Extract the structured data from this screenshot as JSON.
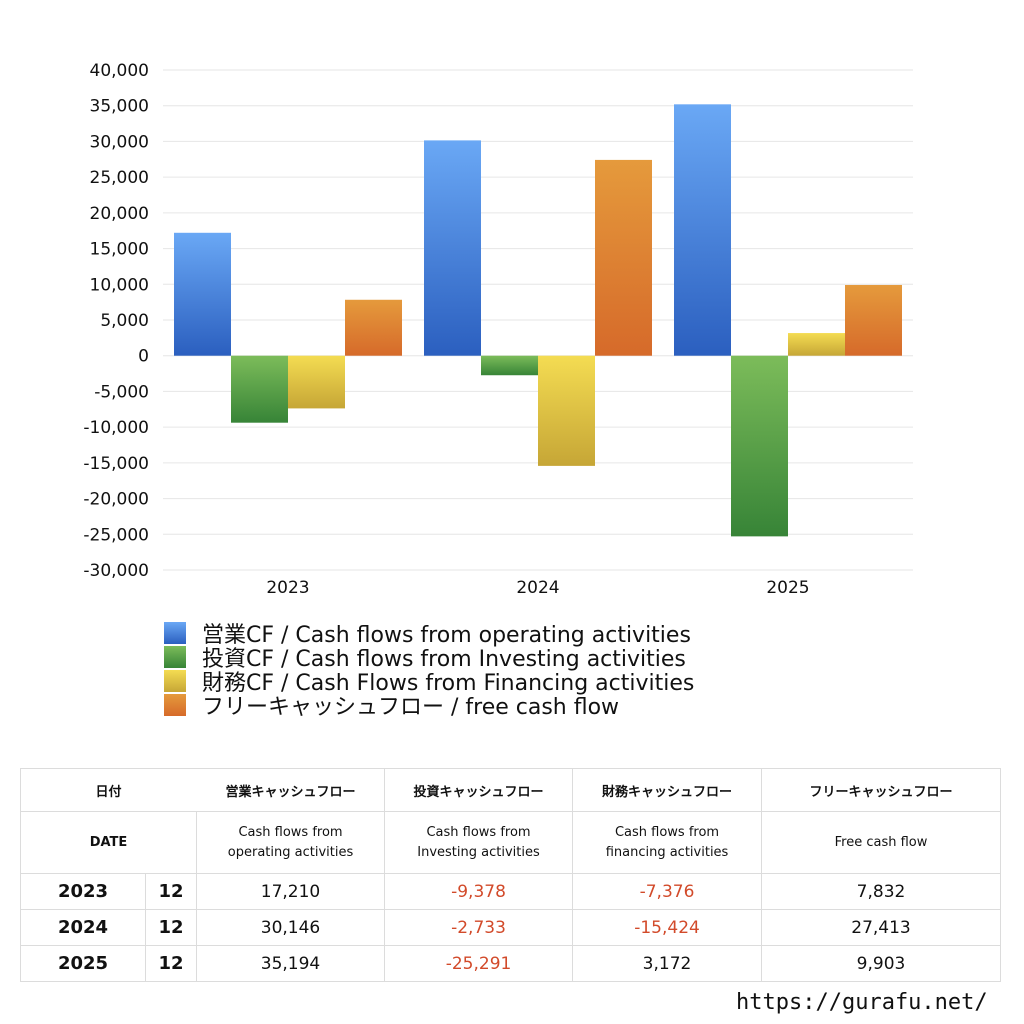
{
  "chart_data": {
    "type": "bar",
    "categories": [
      "2023",
      "2024",
      "2025"
    ],
    "series": [
      {
        "name": "営業CF / Cash flows from operating activities",
        "values": [
          17210,
          30146,
          35194
        ],
        "color_top": "#6aa8f5",
        "color_bottom": "#2b5fbf"
      },
      {
        "name": "投資CF / Cash flows from Investing activities",
        "values": [
          -9378,
          -2733,
          -25291
        ],
        "color_top": "#7cbc5a",
        "color_bottom": "#378437"
      },
      {
        "name": "財務CF / Cash Flows from Financing activities",
        "values": [
          -7376,
          -15424,
          3172
        ],
        "color_top": "#f4dc52",
        "color_bottom": "#c6a636"
      },
      {
        "name": "フリーキャッシュフロー / free cash flow",
        "values": [
          7832,
          27413,
          9903
        ],
        "color_top": "#e59a3c",
        "color_bottom": "#d66a2a"
      }
    ],
    "ylim": [
      -30000,
      40000
    ],
    "yticks": [
      "40,000",
      "35,000",
      "30,000",
      "25,000",
      "20,000",
      "15,000",
      "10,000",
      "5,000",
      "0",
      "-5,000",
      "-10,000",
      "-15,000",
      "-20,000",
      "-25,000",
      "-30,000"
    ],
    "grid": true,
    "legend_position": "bottom-left"
  },
  "table": {
    "header_jp": {
      "date": "日付",
      "operating": "営業キャッシュフロー",
      "investing": "投資キャッシュフロー",
      "financing": "財務キャッシュフロー",
      "free": "フリーキャッシュフロー"
    },
    "header_en": {
      "date": "DATE",
      "operating": [
        "Cash flows from",
        "operating activities"
      ],
      "investing": [
        "Cash flows from",
        "Investing activities"
      ],
      "financing": [
        "Cash flows from",
        "financing activities"
      ],
      "free": "Free cash flow"
    },
    "rows": [
      {
        "year": "2023",
        "month": "12",
        "operating": "17,210",
        "investing": "-9,378",
        "financing": "-7,376",
        "free": "7,832"
      },
      {
        "year": "2024",
        "month": "12",
        "operating": "30,146",
        "investing": "-2,733",
        "financing": "-15,424",
        "free": "27,413"
      },
      {
        "year": "2025",
        "month": "12",
        "operating": "35,194",
        "investing": "-25,291",
        "financing": "3,172",
        "free": "9,903"
      }
    ]
  },
  "url": "https://gurafu.net/"
}
